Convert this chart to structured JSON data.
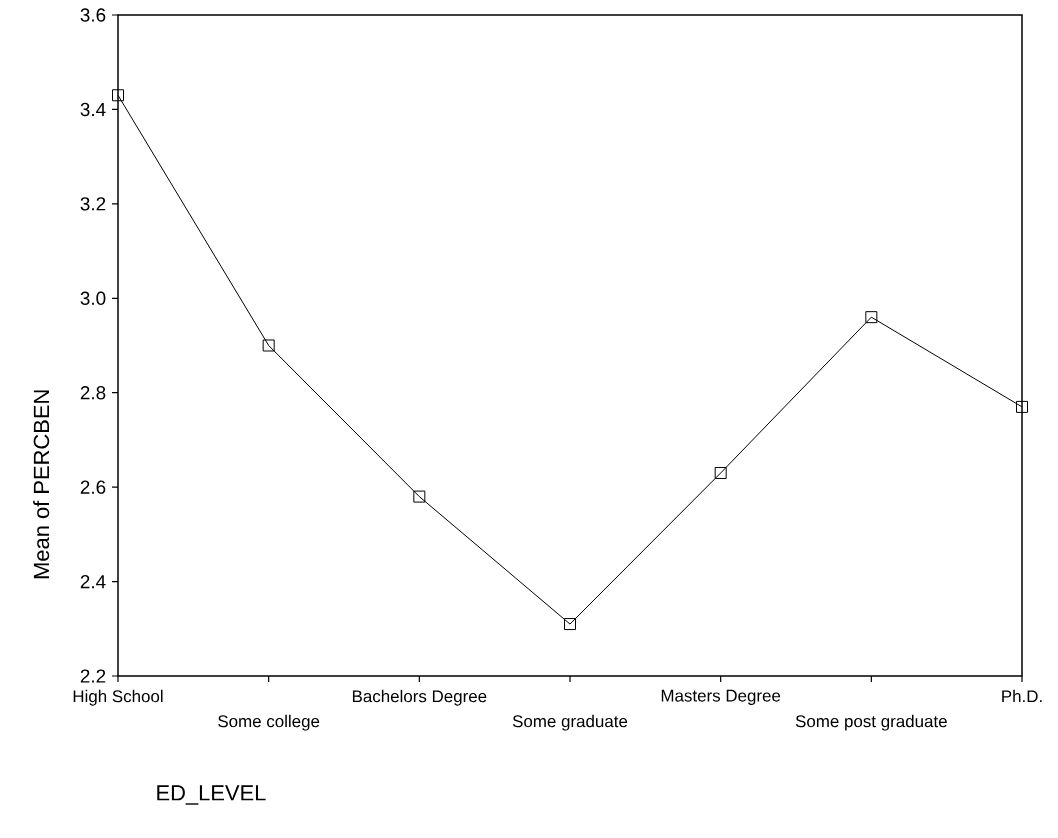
{
  "chart_data": {
    "type": "line",
    "xlabel": "ED_LEVEL",
    "ylabel": "Mean of PERCBEN",
    "categories": [
      "High School",
      "Some college",
      "Bachelors Degree",
      "Some graduate",
      "Masters Degree",
      "Some post graduate",
      "Ph.D."
    ],
    "values": [
      3.43,
      2.9,
      2.58,
      2.31,
      2.63,
      2.96,
      2.77
    ],
    "color": "#000000",
    "marker": "square",
    "line_style": "solid",
    "ylim": [
      2.2,
      3.6
    ],
    "yticks": [
      {
        "value": 2.2,
        "label": "2.2"
      },
      {
        "value": 2.4,
        "label": "2.4"
      },
      {
        "value": 2.6,
        "label": "2.6"
      },
      {
        "value": 2.8,
        "label": "2.8"
      },
      {
        "value": 3.0,
        "label": "3.0"
      },
      {
        "value": 3.2,
        "label": "3.2"
      },
      {
        "value": 3.4,
        "label": "3.4"
      },
      {
        "value": 3.6,
        "label": "3.6"
      }
    ]
  }
}
